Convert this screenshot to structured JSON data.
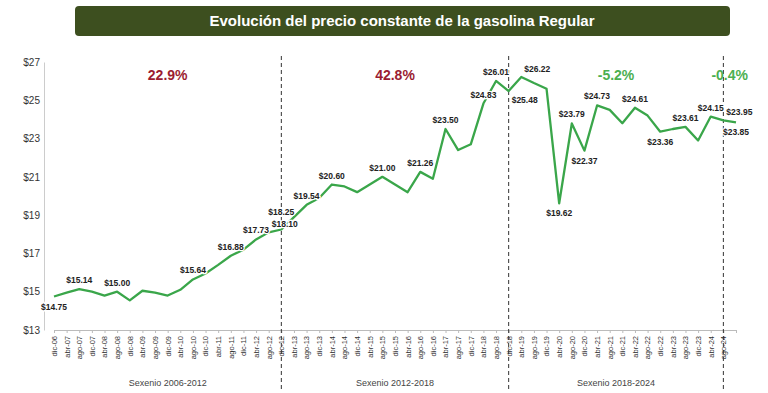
{
  "chart_data": {
    "type": "line",
    "title": "Evolución del precio constante de la gasolina Regular",
    "categories": [
      "dic-06",
      "abr-07",
      "ago-07",
      "dic-07",
      "abr-08",
      "ago-08",
      "dic-08",
      "abr-09",
      "ago-09",
      "dic-09",
      "abr-10",
      "ago-10",
      "dic-10",
      "abr-11",
      "ago-11",
      "dic-11",
      "abr-12",
      "ago-12",
      "dic-12",
      "abr-13",
      "ago-13",
      "dic-13",
      "abr-14",
      "ago-14",
      "dic-14",
      "abr-15",
      "ago-15",
      "dic-15",
      "abr-16",
      "ago-16",
      "dic-16",
      "abr-17",
      "ago-17",
      "dic-17",
      "abr-18",
      "ago-18",
      "dic-18",
      "abr-19",
      "ago-19",
      "dic-19",
      "abr-20",
      "ago-20",
      "dic-20",
      "abr-21",
      "ago-21",
      "dic-21",
      "abr-22",
      "ago-22",
      "dic-22",
      "abr-23",
      "ago-23",
      "dic-23",
      "abr-24",
      "ago-24",
      null
    ],
    "series": [
      {
        "color": "#3aa64a",
        "values": [
          14.75,
          14.95,
          15.14,
          15.0,
          14.8,
          15.0,
          14.55,
          15.05,
          14.95,
          14.8,
          15.1,
          15.64,
          15.95,
          16.4,
          16.88,
          17.2,
          17.73,
          18.1,
          18.25,
          18.9,
          19.54,
          19.9,
          20.6,
          20.5,
          20.2,
          20.6,
          21.0,
          20.6,
          20.2,
          21.26,
          20.9,
          23.5,
          22.4,
          22.7,
          24.83,
          26.01,
          25.48,
          26.22,
          25.9,
          25.6,
          19.62,
          23.79,
          22.37,
          24.73,
          24.5,
          23.8,
          24.61,
          24.2,
          23.36,
          23.5,
          23.61,
          22.9,
          24.15,
          23.95,
          23.85
        ],
        "value_labels": [
          "$14.75",
          null,
          "$15.14",
          null,
          null,
          "$15.00",
          null,
          null,
          null,
          null,
          null,
          "$15.64",
          null,
          null,
          "$16.88",
          null,
          "$17.73",
          "$18.10",
          "$18.25",
          null,
          "$19.54",
          null,
          "$20.60",
          null,
          null,
          null,
          "$21.00",
          null,
          null,
          "$21.26",
          null,
          "$23.50",
          null,
          null,
          "$24.83",
          "$26.01",
          "$25.48",
          "$26.22",
          null,
          null,
          "$19.62",
          "$23.79",
          "$22.37",
          "$24.73",
          null,
          null,
          "$24.61",
          null,
          "$23.36",
          null,
          "$23.61",
          null,
          "$24.15",
          "$23.95",
          "$23.85"
        ]
      }
    ],
    "ylim": [
      13,
      27
    ],
    "yticks": [
      {
        "value": 13,
        "label": "$13"
      },
      {
        "value": 15,
        "label": "$15"
      },
      {
        "value": 17,
        "label": "$17"
      },
      {
        "value": 19,
        "label": "$19"
      },
      {
        "value": 21,
        "label": "$21"
      },
      {
        "value": 23,
        "label": "$23"
      },
      {
        "value": 25,
        "label": "$25"
      },
      {
        "value": 27,
        "label": "$27"
      }
    ],
    "grid": false,
    "data_labels": true,
    "dividers": [
      "dic-12",
      "dic-18",
      "ago-24"
    ],
    "periods": [
      {
        "label": "22.9%",
        "color": "#9b1c31",
        "sexenio": "Sexenio 2006-2012"
      },
      {
        "label": "42.8%",
        "color": "#9b1c31",
        "sexenio": "Sexenio 2012-2018"
      },
      {
        "label": "-5.2%",
        "color": "#4caf50",
        "sexenio": "Sexenio 2018-2024"
      },
      {
        "label": "-0.4%",
        "color": "#4caf50"
      }
    ]
  }
}
